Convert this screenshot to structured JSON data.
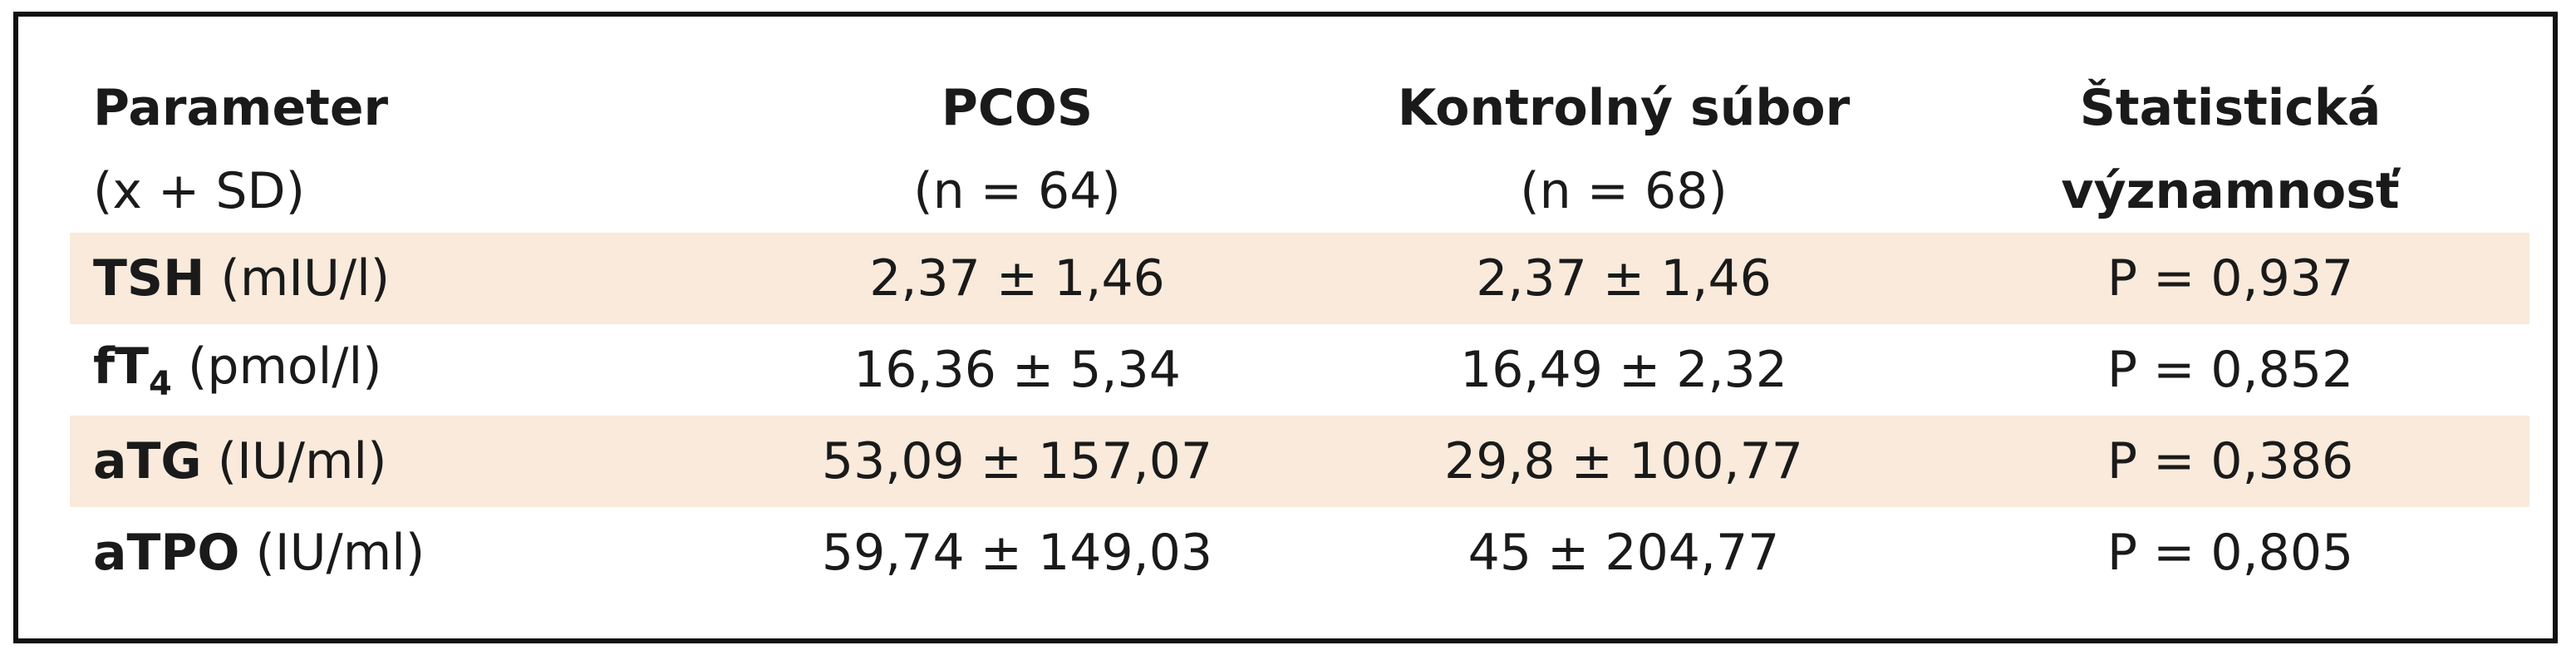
{
  "header": {
    "col1": {
      "line1": "Parameter",
      "line2": "(x + SD)"
    },
    "col2": {
      "line1": "PCOS",
      "line2": "(n = 64)"
    },
    "col3": {
      "line1": "Kontrolný súbor",
      "line2": "(n = 68)"
    },
    "col4": {
      "line1": "Štatistická",
      "line2": "významnosť"
    }
  },
  "rows": [
    {
      "param": "TSH",
      "sub": "",
      "unit": " (mIU/l)",
      "pcos": "2,37 ± 1,46",
      "control": "2,37 ± 1,46",
      "p": "P = 0,937"
    },
    {
      "param": "fT",
      "sub": "4",
      "unit": " (pmol/l)",
      "pcos": "16,36 ± 5,34",
      "control": "16,49 ± 2,32",
      "p": "P = 0,852"
    },
    {
      "param": "aTG",
      "sub": "",
      "unit": " (IU/ml)",
      "pcos": "53,09 ± 157,07",
      "control": "29,8 ± 100,77",
      "p": "P = 0,386"
    },
    {
      "param": "aTPO",
      "sub": "",
      "unit": " (IU/ml)",
      "pcos": "59,74 ± 149,03",
      "control": "45 ± 204,77",
      "p": "P = 0,805"
    }
  ],
  "colors": {
    "shade": "#f9eadb",
    "border": "#111111"
  }
}
